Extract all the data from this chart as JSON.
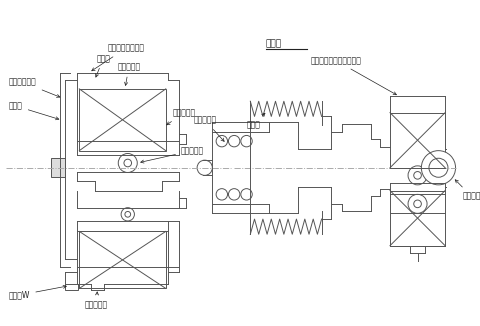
{
  "bg_color": "#ffffff",
  "line_color": "#555555",
  "lw": 0.7,
  "labels": {
    "gap_title": "ギャップ（調整）",
    "armature": "アーマチュア",
    "spring": "板バネ",
    "rotor": "ロータ",
    "field": "フィールド",
    "coil": "励磁コイル",
    "bearing1": "ベアリング",
    "lead": "リードW",
    "stopper": "固り止め板",
    "parts": "仕組品",
    "pulley": "プーリ",
    "gap_spacer": "ギャップ調整用スペーサ",
    "bearing2": "ベアリング",
    "shaft": "シャフト"
  }
}
